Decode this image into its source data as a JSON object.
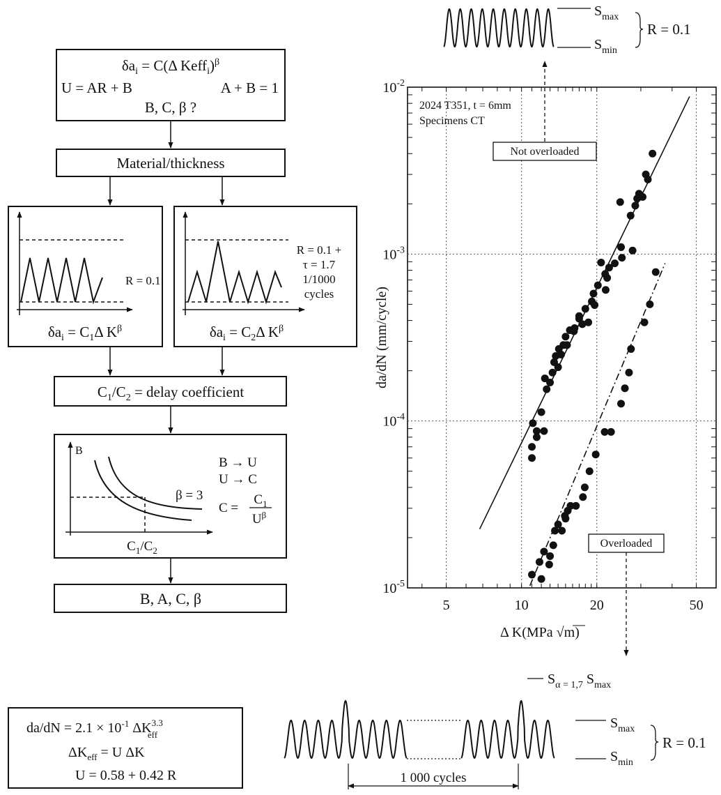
{
  "flow": {
    "box1": {
      "line1": {
        "pre": "δa",
        "sub": "i",
        "mid": " = C(Δ Keff",
        "sub2": "i",
        "post": ")",
        "sup": "β"
      },
      "line2a": "U = AR + B",
      "line2b": "A + B = 1",
      "line3": "B, C, β ?"
    },
    "box2": "Material/thickness",
    "panel_left": {
      "r_label": "R = 0.1",
      "formula": {
        "pre": "δa",
        "sub": "i",
        "mid": " = C",
        "sub2": "1",
        "post": "Δ K",
        "sup": "β"
      }
    },
    "panel_right": {
      "label1": "R = 0.1 +",
      "label2": "τ = 1.7",
      "label3": "1/1000",
      "label4": "cycles",
      "formula": {
        "pre": "δa",
        "sub": "i",
        "mid": " = C",
        "sub2": "2",
        "post": "Δ K",
        "sup": "β"
      }
    },
    "box4": {
      "pre": "C",
      "sub": "1",
      "mid": "/C",
      "sub2": "2",
      "post": " = delay coefficient"
    },
    "panel_b": {
      "yaxis": "B",
      "beta": "β = 3",
      "rule1": "B → U",
      "rule2": "U → C",
      "c_eq": "C =",
      "c_num": {
        "pre": "C",
        "sub": "1"
      },
      "c_den": {
        "pre": "U",
        "sup": "β"
      },
      "xaxis": {
        "pre": "C",
        "sub": "1",
        "mid": "/C",
        "sub2": "2"
      }
    },
    "box6": "B, A, C, β"
  },
  "formula_box": {
    "line1": {
      "pre": "da/dN = 2.1 × 10",
      "sup": "-1",
      "mid": " ΔK",
      "sup2": "3.3",
      "sub2": "eff"
    },
    "line2": {
      "pre": "ΔK",
      "sub": "eff",
      "post": " = U ΔK"
    },
    "line3": "U = 0.58 + 0.42 R"
  },
  "top_wave": {
    "smax": {
      "pre": "S",
      "sub": "max"
    },
    "smin": {
      "pre": "S",
      "sub": "min"
    },
    "r": "R = 0.1"
  },
  "bottom_wave": {
    "s_over": {
      "pre": "S",
      "sub": "α = 1,7",
      "post": " S",
      "post_sub": "max"
    },
    "smax": {
      "pre": "S",
      "sub": "max"
    },
    "smin": {
      "pre": "S",
      "sub": "min"
    },
    "r": "R = 0.1",
    "cycles": "1 000 cycles"
  },
  "chart_data": {
    "type": "scatter",
    "xscale": "log",
    "yscale": "log",
    "xlim": [
      3.5,
      60
    ],
    "ylim": [
      1e-05,
      0.01
    ],
    "xticks": [
      "5",
      "10",
      "20",
      "50"
    ],
    "yticks": [
      {
        "base": "10",
        "exp": "-2"
      },
      {
        "base": "10",
        "exp": "-3"
      },
      {
        "base": "10",
        "exp": "-4"
      },
      {
        "base": "10",
        "exp": "-5"
      }
    ],
    "xlabel": "Δ K(MPa √m)",
    "ylabel": "da/dN (mm/cycle)",
    "annotation1": "2024 T351, t = 6mm",
    "annotation2": "Specimens CT",
    "grid": true,
    "series": [
      {
        "name": "Not overloaded",
        "fit": [
          [
            6.8,
            2.25e-05
          ],
          [
            47,
            0.0088
          ]
        ],
        "points": [
          [
            11,
            6e-05
          ],
          [
            11,
            7e-05
          ],
          [
            11.1,
            9.7e-05
          ],
          [
            11.5,
            8e-05
          ],
          [
            11.5,
            8.7e-05
          ],
          [
            12,
            0.000113
          ],
          [
            12.3,
            8.7e-05
          ],
          [
            12.4,
            0.00018
          ],
          [
            12.6,
            0.000155
          ],
          [
            13,
            0.00017
          ],
          [
            13.3,
            0.000195
          ],
          [
            13.5,
            0.000225
          ],
          [
            13.7,
            0.000245
          ],
          [
            14,
            0.00021
          ],
          [
            14.1,
            0.00027
          ],
          [
            14.4,
            0.00025
          ],
          [
            14.7,
            0.000285
          ],
          [
            15.2,
            0.000285
          ],
          [
            15,
            0.00032
          ],
          [
            15.6,
            0.00035
          ],
          [
            16.2,
            0.000345
          ],
          [
            16.3,
            0.00036
          ],
          [
            17,
            0.00041
          ],
          [
            17,
            0.000425
          ],
          [
            17.5,
            0.00038
          ],
          [
            18,
            0.00047
          ],
          [
            18.5,
            0.00039
          ],
          [
            19.1,
            0.00052
          ],
          [
            19.4,
            0.00058
          ],
          [
            19.6,
            0.000495
          ],
          [
            20.2,
            0.00065
          ],
          [
            20.8,
            0.00089
          ],
          [
            21.6,
            0.00076
          ],
          [
            21.7,
            0.00061
          ],
          [
            22,
            0.00072
          ],
          [
            22.4,
            0.00083
          ],
          [
            23.6,
            0.00088
          ],
          [
            25,
            0.0011
          ],
          [
            25.2,
            0.00095
          ],
          [
            24.8,
            0.00205
          ],
          [
            27.8,
            0.00105
          ],
          [
            27.3,
            0.0017
          ],
          [
            28.5,
            0.00195
          ],
          [
            29,
            0.00215
          ],
          [
            29.5,
            0.0023
          ],
          [
            30.5,
            0.0022
          ],
          [
            31.4,
            0.003
          ],
          [
            32,
            0.0028
          ],
          [
            33.4,
            0.004
          ]
        ]
      },
      {
        "name": "Overloaded",
        "fit": [
          [
            10.8,
            1.03e-05
          ],
          [
            37.5,
            0.00088
          ]
        ],
        "points": [
          [
            11,
            1.2e-05
          ],
          [
            11.8,
            1.43e-05
          ],
          [
            12,
            1.13e-05
          ],
          [
            12.3,
            1.65e-05
          ],
          [
            12.9,
            1.38e-05
          ],
          [
            13,
            1.55e-05
          ],
          [
            13.4,
            1.8e-05
          ],
          [
            13.6,
            2.2e-05
          ],
          [
            14,
            2.4e-05
          ],
          [
            14.5,
            2.2e-05
          ],
          [
            14.9,
            2.7e-05
          ],
          [
            15,
            2.6e-05
          ],
          [
            15.3,
            2.9e-05
          ],
          [
            15.7,
            3.1e-05
          ],
          [
            16.5,
            3.1e-05
          ],
          [
            17.6,
            3.5e-05
          ],
          [
            17.9,
            4e-05
          ],
          [
            18.7,
            5e-05
          ],
          [
            19.8,
            6.3e-05
          ],
          [
            21.5,
            8.6e-05
          ],
          [
            22.8,
            8.6e-05
          ],
          [
            25,
            0.000127
          ],
          [
            25.9,
            0.000157
          ],
          [
            26.9,
            0.000195
          ],
          [
            27.4,
            0.00027
          ],
          [
            31,
            0.00039
          ],
          [
            32.6,
            0.0005
          ],
          [
            34.4,
            0.00078
          ]
        ]
      }
    ]
  }
}
